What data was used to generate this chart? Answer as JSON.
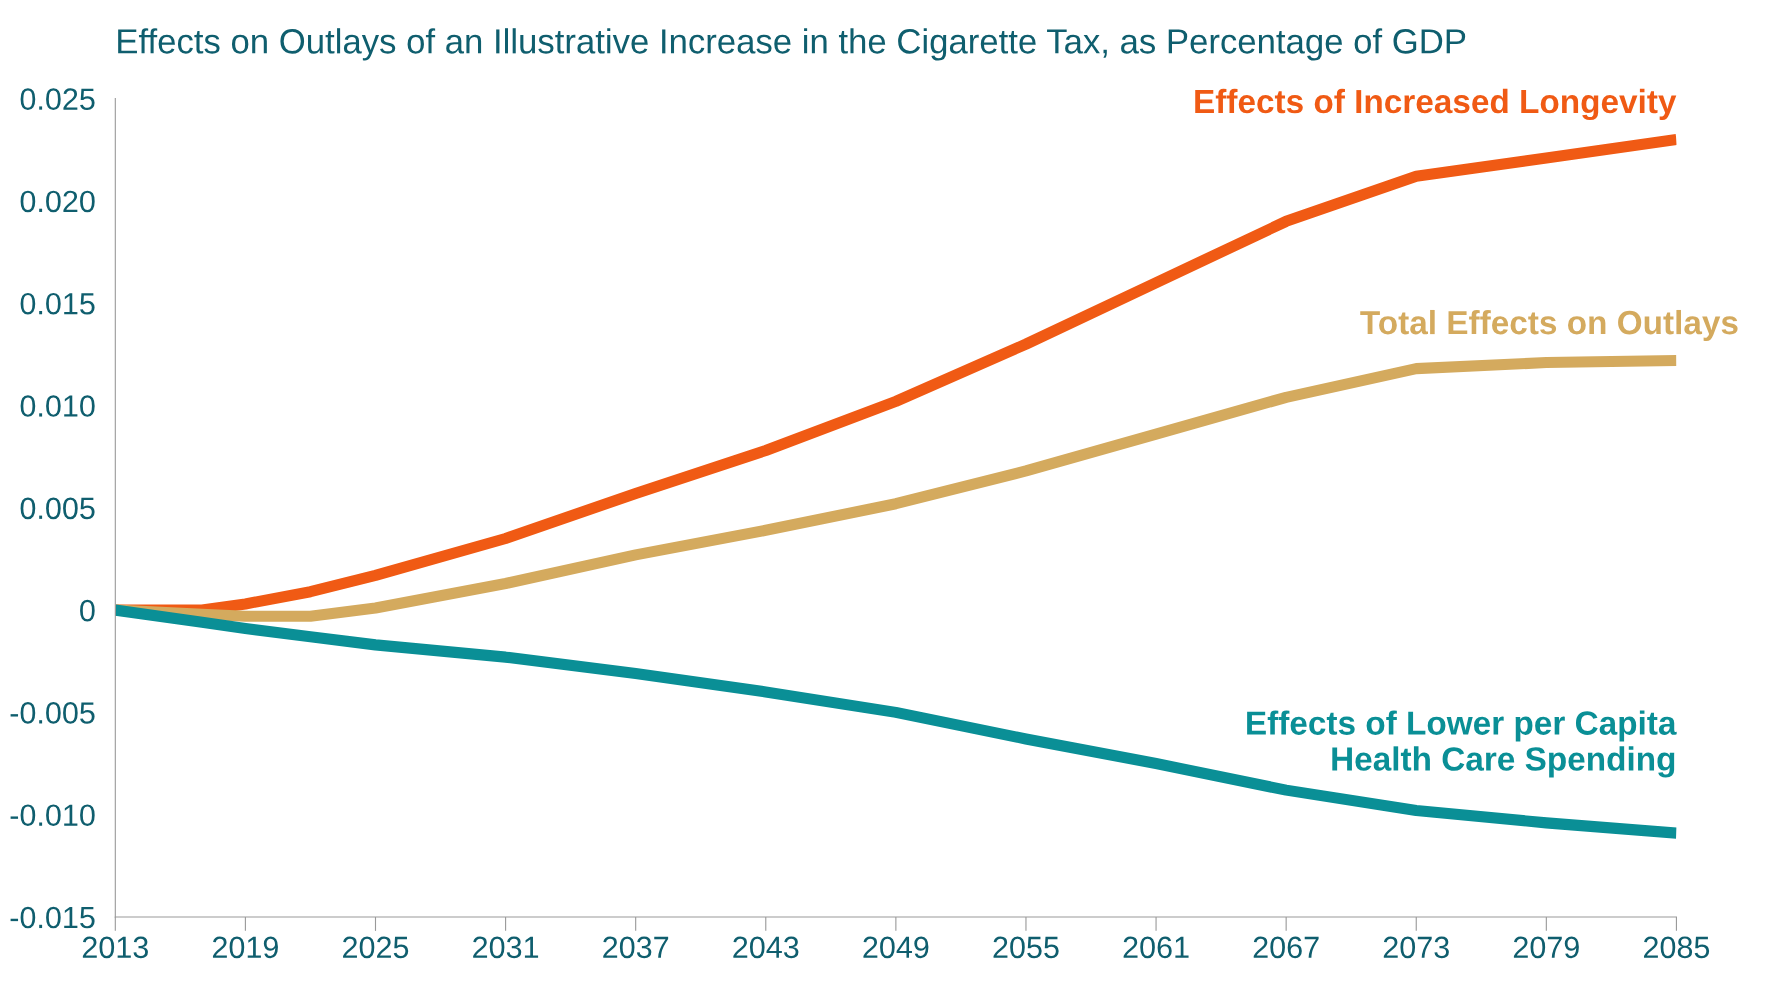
{
  "chart_data": {
    "type": "line",
    "title": "Effects on Outlays of an Illustrative Increase in the Cigarette Tax, as Percentage of GDP",
    "x": [
      2013,
      2017,
      2019,
      2022,
      2025,
      2031,
      2037,
      2043,
      2049,
      2055,
      2061,
      2067,
      2073,
      2079,
      2085
    ],
    "series": [
      {
        "name": "Effects of Increased Longevity",
        "color": "#f05a14",
        "values": [
          0,
          0,
          0.0003,
          0.0009,
          0.0017,
          0.0035,
          0.0057,
          0.0078,
          0.0102,
          0.013,
          0.016,
          0.019,
          0.0212,
          0.0221,
          0.023
        ]
      },
      {
        "name": "Total Effects on Outlays",
        "color": "#d4aa5e",
        "values": [
          0,
          -0.0002,
          -0.0003,
          -0.0003,
          0.0001,
          0.0013,
          0.0027,
          0.0039,
          0.0052,
          0.0068,
          0.0086,
          0.0104,
          0.0118,
          0.0121,
          0.0122
        ]
      },
      {
        "name": "Effects of Lower per Capita\nHealth Care Spending",
        "color": "#0a8f96",
        "values": [
          0,
          -0.0006,
          -0.0009,
          -0.0013,
          -0.0017,
          -0.0023,
          -0.0031,
          -0.004,
          -0.005,
          -0.0063,
          -0.0075,
          -0.0088,
          -0.0098,
          -0.0104,
          -0.0109
        ]
      }
    ],
    "xlim": [
      2013,
      2085
    ],
    "xticks": [
      2013,
      2019,
      2025,
      2031,
      2037,
      2043,
      2049,
      2055,
      2061,
      2067,
      2073,
      2079,
      2085
    ],
    "ylim": [
      -0.015,
      0.025
    ],
    "yticks": [
      {
        "value": -0.015,
        "label": "-0.015"
      },
      {
        "value": -0.01,
        "label": "-0.010"
      },
      {
        "value": -0.005,
        "label": "-0.005"
      },
      {
        "value": 0,
        "label": "0"
      },
      {
        "value": 0.005,
        "label": "0.005"
      },
      {
        "value": 0.01,
        "label": "0.010"
      },
      {
        "value": 0.015,
        "label": "0.015"
      },
      {
        "value": 0.02,
        "label": "0.020"
      },
      {
        "value": 0.025,
        "label": "0.025"
      }
    ],
    "grid": false,
    "legend": false,
    "line_style": "solid",
    "marker": "none"
  }
}
